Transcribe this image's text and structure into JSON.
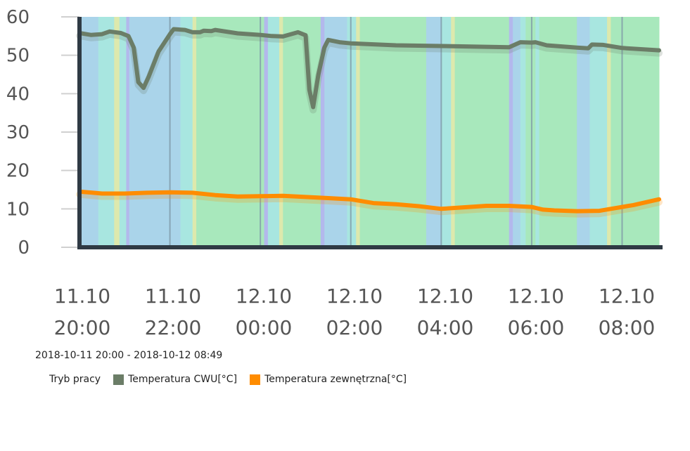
{
  "chart_data": {
    "type": "line",
    "date_range": "2018-10-11 20:00 - 2018-10-12 08:49",
    "ylim": [
      0,
      60
    ],
    "yticks": [
      0,
      10,
      20,
      30,
      40,
      50,
      60
    ],
    "xticks": [
      {
        "date": "11.10",
        "time": "20:00"
      },
      {
        "date": "11.10",
        "time": "22:00"
      },
      {
        "date": "12.10",
        "time": "00:00"
      },
      {
        "date": "12.10",
        "time": "02:00"
      },
      {
        "date": "12.10",
        "time": "04:00"
      },
      {
        "date": "12.10",
        "time": "06:00"
      },
      {
        "date": "12.10",
        "time": "08:00"
      }
    ],
    "x_start": "2018-10-11 20:00",
    "x_end": "2018-10-12 08:49",
    "legend": {
      "mode_label": "Tryb pracy",
      "entries": [
        {
          "name": "Temperatura CWU[°C]",
          "color": "#6b7d67"
        },
        {
          "name": "Temperatura zewnętrzna[°C]",
          "color": "#ff8c00"
        }
      ]
    },
    "mode_colors": {
      "blue": "#aad4ea",
      "cyan": "#a8e6e0",
      "green": "#a8e8bc",
      "yellow": "#dde9ad",
      "purple": "#b3b8ec",
      "gray": "#7f9aa8"
    },
    "mode_bands": [
      {
        "from": "2018-10-11 20:00",
        "to": "2018-10-11 20:25",
        "mode": "blue"
      },
      {
        "from": "2018-10-11 20:25",
        "to": "2018-10-11 20:46",
        "mode": "cyan"
      },
      {
        "from": "2018-10-11 20:46",
        "to": "2018-10-11 20:53",
        "mode": "yellow"
      },
      {
        "from": "2018-10-11 20:53",
        "to": "2018-10-11 21:02",
        "mode": "cyan"
      },
      {
        "from": "2018-10-11 21:02",
        "to": "2018-10-11 21:06",
        "mode": "purple"
      },
      {
        "from": "2018-10-11 21:06",
        "to": "2018-10-11 22:14",
        "mode": "blue"
      },
      {
        "from": "2018-10-11 22:14",
        "to": "2018-10-11 22:30",
        "mode": "cyan"
      },
      {
        "from": "2018-10-11 22:30",
        "to": "2018-10-11 22:35",
        "mode": "yellow"
      },
      {
        "from": "2018-10-11 22:35",
        "to": "2018-10-12 00:05",
        "mode": "green"
      },
      {
        "from": "2018-10-12 00:05",
        "to": "2018-10-12 00:10",
        "mode": "purple"
      },
      {
        "from": "2018-10-12 00:10",
        "to": "2018-10-12 00:25",
        "mode": "cyan"
      },
      {
        "from": "2018-10-12 00:25",
        "to": "2018-10-12 00:30",
        "mode": "yellow"
      },
      {
        "from": "2018-10-12 00:30",
        "to": "2018-10-12 01:20",
        "mode": "green"
      },
      {
        "from": "2018-10-12 01:20",
        "to": "2018-10-12 01:25",
        "mode": "purple"
      },
      {
        "from": "2018-10-12 01:25",
        "to": "2018-10-12 01:55",
        "mode": "blue"
      },
      {
        "from": "2018-10-12 01:55",
        "to": "2018-10-12 02:07",
        "mode": "cyan"
      },
      {
        "from": "2018-10-12 02:07",
        "to": "2018-10-12 02:12",
        "mode": "yellow"
      },
      {
        "from": "2018-10-12 02:12",
        "to": "2018-10-12 03:40",
        "mode": "green"
      },
      {
        "from": "2018-10-12 03:40",
        "to": "2018-10-12 04:00",
        "mode": "blue"
      },
      {
        "from": "2018-10-12 04:00",
        "to": "2018-10-12 04:13",
        "mode": "cyan"
      },
      {
        "from": "2018-10-12 04:13",
        "to": "2018-10-12 04:18",
        "mode": "yellow"
      },
      {
        "from": "2018-10-12 04:18",
        "to": "2018-10-12 05:30",
        "mode": "green"
      },
      {
        "from": "2018-10-12 05:30",
        "to": "2018-10-12 05:35",
        "mode": "purple"
      },
      {
        "from": "2018-10-12 05:35",
        "to": "2018-10-12 05:45",
        "mode": "blue"
      },
      {
        "from": "2018-10-12 05:45",
        "to": "2018-10-12 05:52",
        "mode": "cyan"
      },
      {
        "from": "2018-10-12 05:52",
        "to": "2018-10-12 06:05",
        "mode": "green"
      },
      {
        "from": "2018-10-12 06:05",
        "to": "2018-10-12 06:10",
        "mode": "cyan"
      },
      {
        "from": "2018-10-12 06:10",
        "to": "2018-10-12 07:00",
        "mode": "green"
      },
      {
        "from": "2018-10-12 07:00",
        "to": "2018-10-12 07:17",
        "mode": "blue"
      },
      {
        "from": "2018-10-12 07:17",
        "to": "2018-10-12 07:40",
        "mode": "cyan"
      },
      {
        "from": "2018-10-12 07:40",
        "to": "2018-10-12 07:45",
        "mode": "yellow"
      },
      {
        "from": "2018-10-12 07:45",
        "to": "2018-10-12 08:49",
        "mode": "green"
      }
    ],
    "mode_lines": [
      "2018-10-11 22:00",
      "2018-10-12 00:00",
      "2018-10-12 02:00",
      "2018-10-12 04:00",
      "2018-10-12 06:00",
      "2018-10-12 08:00"
    ],
    "series": [
      {
        "name": "Temperatura CWU[°C]",
        "color": "#6b7d67",
        "points": [
          [
            "2018-10-11 20:00",
            55.8
          ],
          [
            "2018-10-11 20:15",
            55.3
          ],
          [
            "2018-10-11 20:30",
            55.5
          ],
          [
            "2018-10-11 20:40",
            56.2
          ],
          [
            "2018-10-11 20:55",
            55.8
          ],
          [
            "2018-10-11 21:05",
            55.0
          ],
          [
            "2018-10-11 21:12",
            52.0
          ],
          [
            "2018-10-11 21:18",
            43.0
          ],
          [
            "2018-10-11 21:25",
            41.5
          ],
          [
            "2018-10-11 21:32",
            44.5
          ],
          [
            "2018-10-11 21:45",
            51.0
          ],
          [
            "2018-10-11 22:00",
            55.5
          ],
          [
            "2018-10-11 22:05",
            56.8
          ],
          [
            "2018-10-11 22:20",
            56.6
          ],
          [
            "2018-10-11 22:30",
            56.0
          ],
          [
            "2018-10-11 22:40",
            56.0
          ],
          [
            "2018-10-11 22:45",
            56.4
          ],
          [
            "2018-10-11 22:55",
            56.3
          ],
          [
            "2018-10-11 23:00",
            56.6
          ],
          [
            "2018-10-11 23:30",
            55.7
          ],
          [
            "2018-10-12 00:00",
            55.3
          ],
          [
            "2018-10-12 00:15",
            55.0
          ],
          [
            "2018-10-12 00:30",
            54.9
          ],
          [
            "2018-10-12 00:50",
            56.0
          ],
          [
            "2018-10-12 01:00",
            55.2
          ],
          [
            "2018-10-12 01:05",
            41.0
          ],
          [
            "2018-10-12 01:10",
            36.5
          ],
          [
            "2018-10-12 01:17",
            45.0
          ],
          [
            "2018-10-12 01:25",
            52.0
          ],
          [
            "2018-10-12 01:30",
            54.0
          ],
          [
            "2018-10-12 01:45",
            53.4
          ],
          [
            "2018-10-12 02:00",
            53.1
          ],
          [
            "2018-10-12 03:00",
            52.6
          ],
          [
            "2018-10-12 04:00",
            52.4
          ],
          [
            "2018-10-12 05:30",
            52.1
          ],
          [
            "2018-10-12 05:45",
            53.4
          ],
          [
            "2018-10-12 06:00",
            53.3
          ],
          [
            "2018-10-12 06:05",
            53.4
          ],
          [
            "2018-10-12 06:20",
            52.6
          ],
          [
            "2018-10-12 07:00",
            52.0
          ],
          [
            "2018-10-12 07:15",
            51.8
          ],
          [
            "2018-10-12 07:20",
            52.8
          ],
          [
            "2018-10-12 07:35",
            52.7
          ],
          [
            "2018-10-12 08:00",
            51.9
          ],
          [
            "2018-10-12 08:49",
            51.3
          ]
        ]
      },
      {
        "name": "Temperatura zewnętrzna[°C]",
        "color": "#ff8c00",
        "points": [
          [
            "2018-10-11 20:00",
            14.5
          ],
          [
            "2018-10-11 20:30",
            14.0
          ],
          [
            "2018-10-11 21:00",
            14.0
          ],
          [
            "2018-10-11 21:30",
            14.2
          ],
          [
            "2018-10-11 22:00",
            14.3
          ],
          [
            "2018-10-11 22:30",
            14.2
          ],
          [
            "2018-10-11 23:00",
            13.6
          ],
          [
            "2018-10-11 23:30",
            13.2
          ],
          [
            "2018-10-12 00:00",
            13.3
          ],
          [
            "2018-10-12 00:30",
            13.4
          ],
          [
            "2018-10-12 01:00",
            13.1
          ],
          [
            "2018-10-12 01:30",
            12.8
          ],
          [
            "2018-10-12 02:00",
            12.5
          ],
          [
            "2018-10-12 02:30",
            11.5
          ],
          [
            "2018-10-12 03:00",
            11.2
          ],
          [
            "2018-10-12 03:30",
            10.7
          ],
          [
            "2018-10-12 04:00",
            10.0
          ],
          [
            "2018-10-12 04:30",
            10.4
          ],
          [
            "2018-10-12 05:00",
            10.8
          ],
          [
            "2018-10-12 05:30",
            10.8
          ],
          [
            "2018-10-12 06:00",
            10.5
          ],
          [
            "2018-10-12 06:15",
            9.8
          ],
          [
            "2018-10-12 06:30",
            9.6
          ],
          [
            "2018-10-12 07:00",
            9.4
          ],
          [
            "2018-10-12 07:30",
            9.5
          ],
          [
            "2018-10-12 07:45",
            10.0
          ],
          [
            "2018-10-12 08:15",
            11.0
          ],
          [
            "2018-10-12 08:49",
            12.5
          ]
        ]
      }
    ]
  }
}
